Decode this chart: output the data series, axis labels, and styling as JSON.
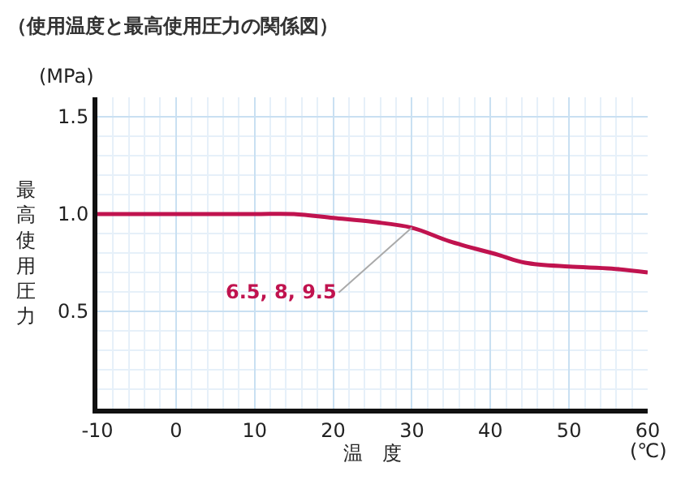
{
  "chart_data": {
    "type": "line",
    "title": "（使用温度と最高使用圧力の関係図）",
    "xlabel": "温　度",
    "ylabel": "最高使用圧力",
    "x": [
      -10,
      0,
      10,
      15,
      20,
      25,
      30,
      34.8,
      41,
      44.4,
      50,
      55.4,
      60
    ],
    "series": [
      {
        "name": "6.5, 8, 9.5",
        "color": "#c0134f",
        "values": [
          1.0,
          1.0,
          1.0,
          1.0,
          0.98,
          0.96,
          0.93,
          0.86,
          0.79,
          0.75,
          0.73,
          0.72,
          0.7
        ]
      }
    ],
    "annotations": [
      "(MPa)",
      "(℃)"
    ],
    "xlim": [
      -10,
      60
    ],
    "xticks": [
      -10,
      0,
      10,
      20,
      30,
      40,
      50,
      60
    ],
    "ylim": [
      0,
      1.6
    ],
    "yticks": [
      {
        "value": 0.5,
        "label": "0.5"
      },
      {
        "value": 1.0,
        "label": "1.0"
      },
      {
        "value": 1.5,
        "label": "1.5"
      }
    ],
    "grid": true,
    "legend": false,
    "marker": "none",
    "line_style": "solid"
  }
}
